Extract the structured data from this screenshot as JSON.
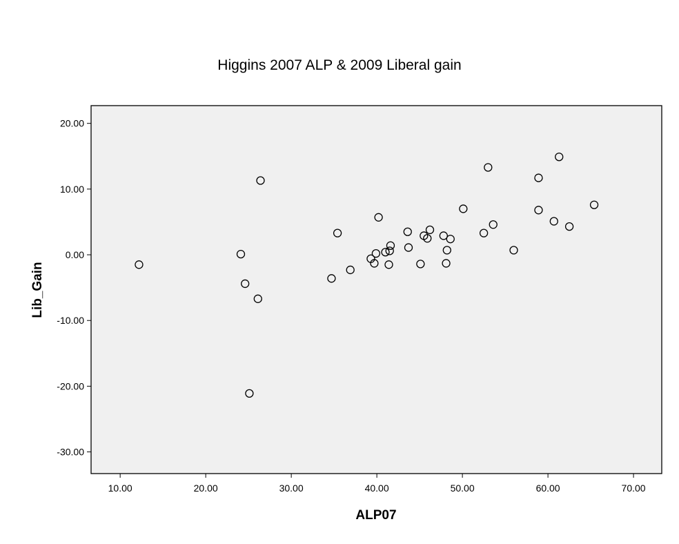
{
  "chart_data": {
    "type": "scatter",
    "title": "Higgins 2007 ALP & 2009 Liberal gain",
    "xlabel": "ALP07",
    "ylabel": "Lib_Gain",
    "xlim": [
      6.6,
      73.3
    ],
    "ylim": [
      -33.3,
      22.7
    ],
    "x_ticks": [
      "10.00",
      "20.00",
      "30.00",
      "40.00",
      "50.00",
      "60.00",
      "70.00"
    ],
    "y_ticks": [
      "20.00",
      "10.00",
      "0.00",
      "-10.00",
      "-20.00",
      "-30.00"
    ],
    "grid": false,
    "legend": "none",
    "marker": "hollow-circle",
    "points": [
      {
        "x": 12.2,
        "y": -1.5
      },
      {
        "x": 24.1,
        "y": 0.1
      },
      {
        "x": 24.6,
        "y": -4.4
      },
      {
        "x": 25.1,
        "y": -21.1
      },
      {
        "x": 26.1,
        "y": -6.7
      },
      {
        "x": 26.4,
        "y": 11.3
      },
      {
        "x": 34.7,
        "y": -3.6
      },
      {
        "x": 35.4,
        "y": 3.3
      },
      {
        "x": 36.9,
        "y": -2.3
      },
      {
        "x": 39.3,
        "y": -0.6
      },
      {
        "x": 39.7,
        "y": -1.3
      },
      {
        "x": 39.9,
        "y": 0.2
      },
      {
        "x": 40.2,
        "y": 5.7
      },
      {
        "x": 41.0,
        "y": 0.4
      },
      {
        "x": 41.4,
        "y": -1.5
      },
      {
        "x": 41.5,
        "y": 0.6
      },
      {
        "x": 41.6,
        "y": 1.4
      },
      {
        "x": 43.6,
        "y": 3.5
      },
      {
        "x": 43.7,
        "y": 1.1
      },
      {
        "x": 45.1,
        "y": -1.4
      },
      {
        "x": 45.5,
        "y": 2.9
      },
      {
        "x": 45.9,
        "y": 2.5
      },
      {
        "x": 46.2,
        "y": 3.8
      },
      {
        "x": 47.8,
        "y": 2.9
      },
      {
        "x": 48.1,
        "y": -1.3
      },
      {
        "x": 48.2,
        "y": 0.7
      },
      {
        "x": 48.6,
        "y": 2.4
      },
      {
        "x": 50.1,
        "y": 7.0
      },
      {
        "x": 52.5,
        "y": 3.3
      },
      {
        "x": 53.0,
        "y": 13.3
      },
      {
        "x": 53.6,
        "y": 4.6
      },
      {
        "x": 56.0,
        "y": 0.7
      },
      {
        "x": 58.9,
        "y": 11.7
      },
      {
        "x": 58.9,
        "y": 6.8
      },
      {
        "x": 60.7,
        "y": 5.1
      },
      {
        "x": 61.3,
        "y": 14.9
      },
      {
        "x": 62.5,
        "y": 4.3
      },
      {
        "x": 65.4,
        "y": 7.6
      }
    ]
  }
}
